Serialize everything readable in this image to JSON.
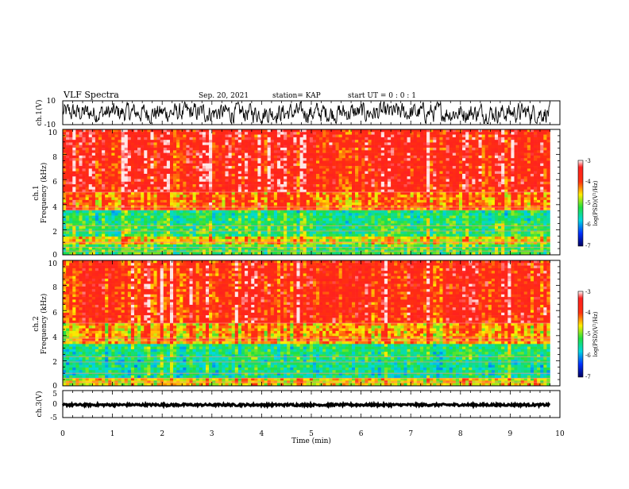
{
  "header": {
    "title": "VLF Spectra",
    "date": "Sep. 20, 2021",
    "station": "station= KAP",
    "start": "start UT = 0 : 0 : 1"
  },
  "chart_data": [
    {
      "type": "line",
      "panel": "ch1-waveform",
      "ylabel": "ch.1(V)",
      "ylim": [
        -10,
        10
      ],
      "ytick_labels": [
        "10",
        "-10"
      ],
      "xlim": [
        0,
        10
      ],
      "description_values": "noise waveform between about -8 and 8 V, t = 0 to 9.8 min",
      "noise_amplitude": 7
    },
    {
      "type": "heatmap",
      "panel": "ch1-spectrogram",
      "ylabel_top": "ch.1",
      "ylabel": "Frequency (kHz)",
      "ylim": [
        0,
        10
      ],
      "ytick_labels": [
        "0",
        "2",
        "4",
        "6",
        "8",
        "10"
      ],
      "xlim": [
        0,
        9.8
      ],
      "colorbar": {
        "label": "log(PSD)(V²/Hz)",
        "ticks": [
          "-3",
          "-4",
          "-5",
          "-6",
          "-7"
        ],
        "range": [
          -7,
          -3
        ]
      },
      "bands_khz": [
        {
          "from": 0,
          "to": 0.8,
          "level": -5.2
        },
        {
          "from": 0.8,
          "to": 1.4,
          "level": -4.6
        },
        {
          "from": 1.4,
          "to": 2.6,
          "level": -5.3
        },
        {
          "from": 2.6,
          "to": 3.5,
          "level": -5.4
        },
        {
          "from": 3.5,
          "to": 5.0,
          "level": -4.2
        },
        {
          "from": 5.0,
          "to": 10.0,
          "level": -3.7
        }
      ]
    },
    {
      "type": "heatmap",
      "panel": "ch2-spectrogram",
      "ylabel_top": "ch.2",
      "ylabel": "Frequency (kHz)",
      "ylim": [
        0,
        10
      ],
      "ytick_labels": [
        "0",
        "2",
        "4",
        "6",
        "8",
        "10"
      ],
      "xlim": [
        0,
        9.8
      ],
      "colorbar": {
        "label": "log(PSD)(V²/Hz)",
        "ticks": [
          "-3",
          "-4",
          "-5",
          "-6",
          "-7"
        ],
        "range": [
          -7,
          -3
        ]
      },
      "bands_khz": [
        {
          "from": 0,
          "to": 0.6,
          "level": -4.6
        },
        {
          "from": 0.6,
          "to": 2.0,
          "level": -5.5
        },
        {
          "from": 2.0,
          "to": 3.4,
          "level": -5.4
        },
        {
          "from": 3.4,
          "to": 5.0,
          "level": -4.4
        },
        {
          "from": 5.0,
          "to": 10.0,
          "level": -3.8
        }
      ]
    },
    {
      "type": "line",
      "panel": "ch3-waveform",
      "ylabel": "ch.3(V)",
      "ylim": [
        -5,
        5
      ],
      "ytick_labels": [
        "5",
        "0",
        "-5"
      ],
      "xlim": [
        0,
        10
      ],
      "description_values": "near-constant signal around 0 V, thin band",
      "noise_amplitude": 0.4
    }
  ],
  "xaxis": {
    "label": "Time (min)",
    "ticks": [
      "0",
      "1",
      "2",
      "3",
      "4",
      "5",
      "6",
      "7",
      "8",
      "9",
      "10"
    ]
  }
}
